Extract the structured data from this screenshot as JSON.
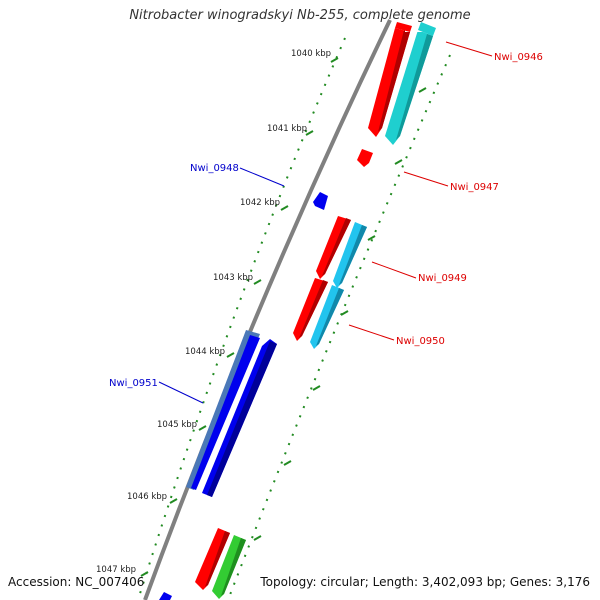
{
  "header": {
    "title": "Nitrobacter winogradskyi Nb-255, complete genome"
  },
  "footer": {
    "accession": "Accession: NC_007406",
    "summary": "Topology: circular; Length: 3,402,093 bp; Genes: 3,176"
  },
  "scale": {
    "labels": [
      "1040 kbp",
      "1041 kbp",
      "1042 kbp",
      "1043 kbp",
      "1044 kbp",
      "1045 kbp",
      "1046 kbp",
      "1047 kbp"
    ]
  },
  "genes": [
    {
      "name": "Nwi_0946",
      "color": "#dd0000"
    },
    {
      "name": "Nwi_0947",
      "color": "#dd0000"
    },
    {
      "name": "Nwi_0948",
      "color": "#0000cc"
    },
    {
      "name": "Nwi_0949",
      "color": "#dd0000"
    },
    {
      "name": "Nwi_0950",
      "color": "#dd0000"
    },
    {
      "name": "Nwi_0951",
      "color": "#0000cc"
    }
  ],
  "colors": {
    "backbone": "#808080",
    "scale_ticks": "#228B22",
    "forward_cds": "#ff0000",
    "forward_feature_teal": "#1fcfcf",
    "forward_feature_cyan": "#22c4ee",
    "forward_feature_green": "#33cc33",
    "reverse_cds": "#0000ee",
    "reverse_feature": "#4a78b8"
  }
}
